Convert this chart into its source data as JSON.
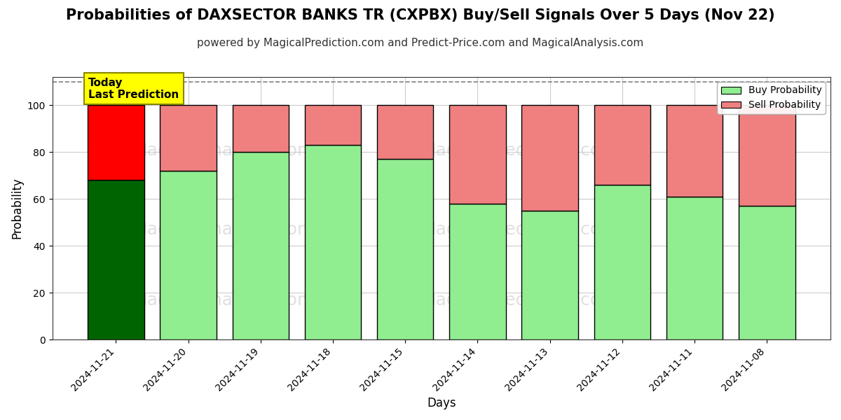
{
  "title": "Probabilities of DAXSECTOR BANKS TR (CXPBX) Buy/Sell Signals Over 5 Days (Nov 22)",
  "subtitle": "powered by MagicalPrediction.com and Predict-Price.com and MagicalAnalysis.com",
  "xlabel": "Days",
  "ylabel": "Probability",
  "categories": [
    "2024-11-21",
    "2024-11-20",
    "2024-11-19",
    "2024-11-18",
    "2024-11-15",
    "2024-11-14",
    "2024-11-13",
    "2024-11-12",
    "2024-11-11",
    "2024-11-08"
  ],
  "buy_values": [
    68,
    72,
    80,
    83,
    77,
    58,
    55,
    66,
    61,
    57
  ],
  "sell_values": [
    32,
    28,
    20,
    17,
    23,
    42,
    45,
    34,
    39,
    43
  ],
  "today_bar_index": 0,
  "buy_color_today": "#006400",
  "sell_color_today": "#FF0000",
  "buy_color_other": "#90EE90",
  "sell_color_other": "#F08080",
  "bar_edge_color": "#000000",
  "today_label_bg": "#FFFF00",
  "today_label_text": "Today\nLast Prediction",
  "ylim_max": 112,
  "yticks": [
    0,
    20,
    40,
    60,
    80,
    100
  ],
  "dashed_line_y": 110,
  "legend_buy": "Buy Probability",
  "legend_sell": "Sell Probability",
  "watermark_color": "#cccccc",
  "grid_color": "#cccccc",
  "background_color": "#ffffff",
  "title_fontsize": 15,
  "subtitle_fontsize": 11,
  "axis_label_fontsize": 12,
  "tick_fontsize": 10
}
